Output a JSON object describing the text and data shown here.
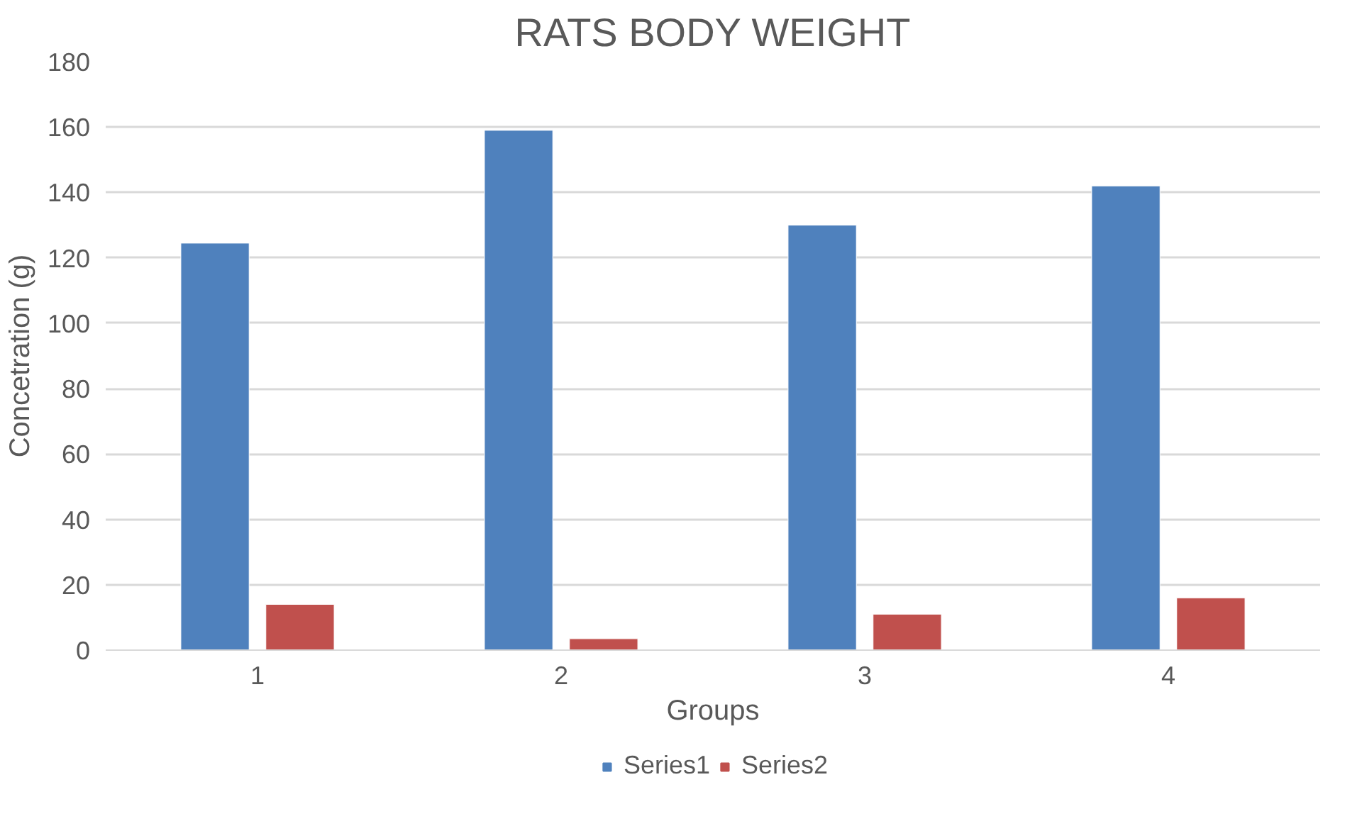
{
  "chart_data": {
    "type": "bar",
    "title": "RATS BODY WEIGHT",
    "xlabel": "Groups",
    "ylabel": "Concetration (g)",
    "categories": [
      "1",
      "2",
      "3",
      "4"
    ],
    "series": [
      {
        "name": "Series1",
        "color": "#4f81bd",
        "values": [
          124.5,
          159,
          130,
          142
        ]
      },
      {
        "name": "Series2",
        "color": "#c0504d",
        "values": [
          14,
          3.5,
          11,
          16
        ]
      }
    ],
    "ylim": [
      0,
      180
    ],
    "yticks": [
      0,
      20,
      40,
      60,
      80,
      100,
      120,
      140,
      160,
      180
    ],
    "grid": "y",
    "legend": "bottom"
  }
}
